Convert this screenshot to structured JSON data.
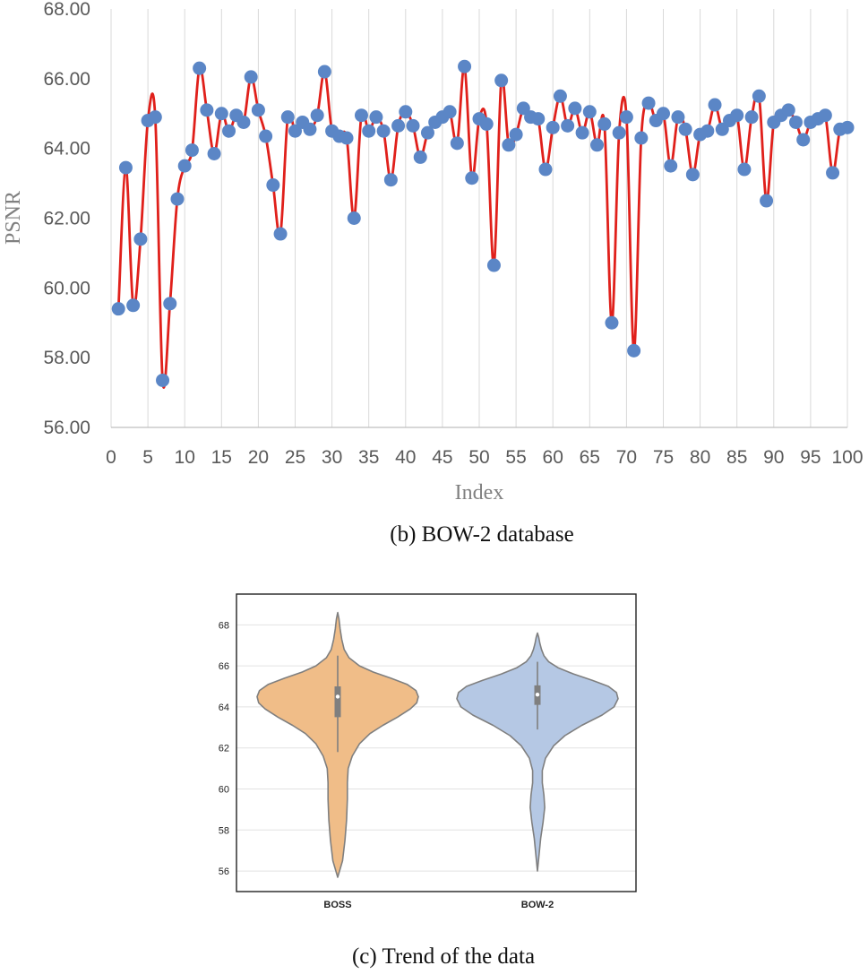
{
  "chart_data": [
    {
      "type": "line",
      "title": "",
      "caption": "(b) BOW-2 database",
      "xlabel": "Index",
      "ylabel": "PSNR",
      "xlim": [
        0,
        100
      ],
      "ylim": [
        56,
        68
      ],
      "x_ticks": [
        "0",
        "5",
        "10",
        "15",
        "20",
        "25",
        "30",
        "35",
        "40",
        "45",
        "50",
        "55",
        "60",
        "65",
        "70",
        "75",
        "80",
        "85",
        "90",
        "95",
        "100"
      ],
      "y_ticks": [
        "56.00",
        "58.00",
        "60.00",
        "62.00",
        "64.00",
        "66.00",
        "68.00"
      ],
      "grid": "vertical",
      "line_color": "#e0201b",
      "marker_color": "#5b86c6",
      "series": [
        {
          "name": "PSNR",
          "x": [
            1,
            2,
            3,
            4,
            5,
            6,
            7,
            8,
            9,
            10,
            11,
            12,
            13,
            14,
            15,
            16,
            17,
            18,
            19,
            20,
            21,
            22,
            23,
            24,
            25,
            26,
            27,
            28,
            29,
            30,
            31,
            32,
            33,
            34,
            35,
            36,
            37,
            38,
            39,
            40,
            41,
            42,
            43,
            44,
            45,
            46,
            47,
            48,
            49,
            50,
            51,
            52,
            53,
            54,
            55,
            56,
            57,
            58,
            59,
            60,
            61,
            62,
            63,
            64,
            65,
            66,
            67,
            68,
            69,
            70,
            71,
            72,
            73,
            74,
            75,
            76,
            77,
            78,
            79,
            80,
            81,
            82,
            83,
            84,
            85,
            86,
            87,
            88,
            89,
            90,
            91,
            92,
            93,
            94,
            95,
            96,
            97,
            98,
            99,
            100
          ],
          "values": [
            59.4,
            63.45,
            59.5,
            61.4,
            64.8,
            64.9,
            57.35,
            59.55,
            62.55,
            63.5,
            63.95,
            66.3,
            65.1,
            63.85,
            65.0,
            64.5,
            64.95,
            64.75,
            66.05,
            65.1,
            64.35,
            62.95,
            61.55,
            64.9,
            64.5,
            64.75,
            64.55,
            64.95,
            66.2,
            64.5,
            64.35,
            64.3,
            62.0,
            64.95,
            64.5,
            64.9,
            64.5,
            63.1,
            64.65,
            65.05,
            64.65,
            63.75,
            64.45,
            64.75,
            64.9,
            65.05,
            64.15,
            66.35,
            63.15,
            64.85,
            64.7,
            60.65,
            65.95,
            64.1,
            64.4,
            65.15,
            64.9,
            64.85,
            63.4,
            64.6,
            65.5,
            64.65,
            65.15,
            64.45,
            65.05,
            64.1,
            64.7,
            59.0,
            64.45,
            64.9,
            58.2,
            64.3,
            65.3,
            64.8,
            65.0,
            63.5,
            64.9,
            64.55,
            63.25,
            64.4,
            64.5,
            65.25,
            64.55,
            64.8,
            64.95,
            63.4,
            64.9,
            65.5,
            62.5,
            64.75,
            64.95,
            65.1,
            64.75,
            64.25,
            64.75,
            64.85,
            64.95,
            63.3,
            64.55,
            64.6
          ]
        }
      ]
    },
    {
      "type": "violin",
      "title": "",
      "caption": "(c) Trend of the data",
      "categories": [
        "BOSS",
        "BOW-2"
      ],
      "y_ticks": [
        "56",
        "58",
        "60",
        "62",
        "64",
        "66",
        "68"
      ],
      "ylim": [
        55,
        69.5
      ],
      "grid": "horizontal",
      "violins": [
        {
          "name": "BOSS",
          "color": "#f0bd88",
          "min": 55.7,
          "max": 68.6,
          "q1": 63.5,
          "median": 64.5,
          "q3": 65.0,
          "whisker_low": 61.8,
          "whisker_high": 66.5,
          "profile_y": [
            55.7,
            56.5,
            57.5,
            58.5,
            59.5,
            60.3,
            61.0,
            61.6,
            62.2,
            62.7,
            63.1,
            63.5,
            63.9,
            64.2,
            64.5,
            64.8,
            65.1,
            65.4,
            65.7,
            66.0,
            66.4,
            66.8,
            67.3,
            67.8,
            68.3,
            68.6
          ],
          "profile_w": [
            0.0,
            0.06,
            0.09,
            0.11,
            0.12,
            0.12,
            0.13,
            0.18,
            0.27,
            0.4,
            0.56,
            0.74,
            0.9,
            0.98,
            1.0,
            0.97,
            0.86,
            0.66,
            0.44,
            0.27,
            0.14,
            0.08,
            0.05,
            0.03,
            0.015,
            0.0
          ]
        },
        {
          "name": "BOW-2",
          "color": "#b5c8e4",
          "min": 56.0,
          "max": 67.6,
          "q1": 64.1,
          "median": 64.6,
          "q3": 65.05,
          "whisker_low": 62.9,
          "whisker_high": 66.2,
          "profile_y": [
            56.0,
            56.8,
            57.6,
            58.4,
            59.1,
            59.7,
            60.3,
            60.9,
            61.5,
            62.1,
            62.6,
            63.1,
            63.6,
            64.0,
            64.4,
            64.7,
            65.0,
            65.3,
            65.6,
            65.9,
            66.2,
            66.5,
            66.8,
            67.1,
            67.4,
            67.6
          ],
          "profile_w": [
            0.0,
            0.02,
            0.04,
            0.07,
            0.09,
            0.08,
            0.06,
            0.06,
            0.1,
            0.2,
            0.34,
            0.55,
            0.8,
            0.95,
            1.0,
            0.98,
            0.88,
            0.68,
            0.45,
            0.26,
            0.14,
            0.08,
            0.05,
            0.03,
            0.015,
            0.0
          ]
        }
      ]
    }
  ]
}
